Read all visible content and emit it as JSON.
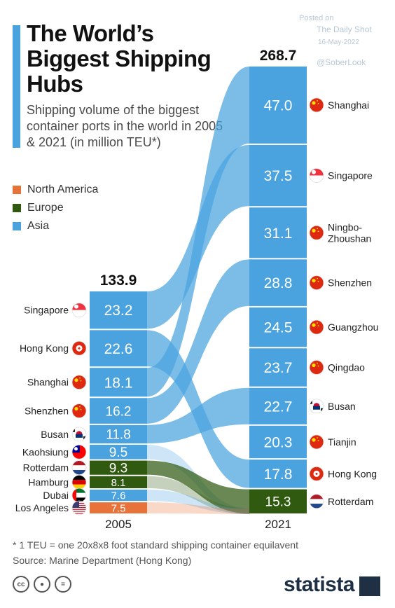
{
  "header": {
    "title": "The World’s Biggest Shipping Hubs",
    "subtitle": "Shipping volume of the biggest container ports in the world in 2005 & 2021 (in million TEU*)",
    "posted_on": "Posted on",
    "posted_source": "The Daily Shot",
    "posted_date": "16-May-2022",
    "handle": "@SoberLook"
  },
  "legend": [
    {
      "label": "North America",
      "color": "#e8733a"
    },
    {
      "label": "Europe",
      "color": "#2f5a10"
    },
    {
      "label": "Asia",
      "color": "#4aa3df"
    }
  ],
  "chart_data": {
    "type": "bar",
    "subtype": "stacked-bump",
    "unit": "million TEU",
    "columns": [
      {
        "label": "2005",
        "total": "133.9",
        "items": [
          {
            "port": "Singapore",
            "value": 23.2,
            "region": "Asia",
            "flag": "singapore"
          },
          {
            "port": "Hong Kong",
            "value": 22.6,
            "region": "Asia",
            "flag": "hong-kong"
          },
          {
            "port": "Shanghai",
            "value": 18.1,
            "region": "Asia",
            "flag": "china"
          },
          {
            "port": "Shenzhen",
            "value": 16.2,
            "region": "Asia",
            "flag": "china"
          },
          {
            "port": "Busan",
            "value": 11.8,
            "region": "Asia",
            "flag": "south-korea"
          },
          {
            "port": "Kaohsiung",
            "value": 9.5,
            "region": "Asia",
            "flag": "taiwan"
          },
          {
            "port": "Rotterdam",
            "value": 9.3,
            "region": "Europe",
            "flag": "netherlands"
          },
          {
            "port": "Hamburg",
            "value": 8.1,
            "region": "Europe",
            "flag": "germany"
          },
          {
            "port": "Dubai",
            "value": 7.6,
            "region": "Asia",
            "flag": "uae"
          },
          {
            "port": "Los Angeles",
            "value": 7.5,
            "region": "North America",
            "flag": "usa"
          }
        ]
      },
      {
        "label": "2021",
        "total": "268.7",
        "items": [
          {
            "port": "Shanghai",
            "value": 47.0,
            "region": "Asia",
            "flag": "china"
          },
          {
            "port": "Singapore",
            "value": 37.5,
            "region": "Asia",
            "flag": "singapore"
          },
          {
            "port": "Ningbo-Zhoushan",
            "value": 31.1,
            "region": "Asia",
            "flag": "china"
          },
          {
            "port": "Shenzhen",
            "value": 28.8,
            "region": "Asia",
            "flag": "china"
          },
          {
            "port": "Guangzhou",
            "value": 24.5,
            "region": "Asia",
            "flag": "china"
          },
          {
            "port": "Qingdao",
            "value": 23.7,
            "region": "Asia",
            "flag": "china"
          },
          {
            "port": "Busan",
            "value": 22.7,
            "region": "Asia",
            "flag": "south-korea"
          },
          {
            "port": "Tianjin",
            "value": 20.3,
            "region": "Asia",
            "flag": "china"
          },
          {
            "port": "Hong Kong",
            "value": 17.8,
            "region": "Asia",
            "flag": "hong-kong"
          },
          {
            "port": "Rotterdam",
            "value": 15.3,
            "region": "Europe",
            "flag": "netherlands"
          }
        ]
      }
    ]
  },
  "footer": {
    "footnote": "* 1 TEU = one 20x8x8 foot standard shipping container equilavent",
    "source": "Source: Marine Department (Hong Kong)",
    "brand": "statista",
    "license_icons": [
      "cc",
      "by",
      "nd"
    ]
  }
}
